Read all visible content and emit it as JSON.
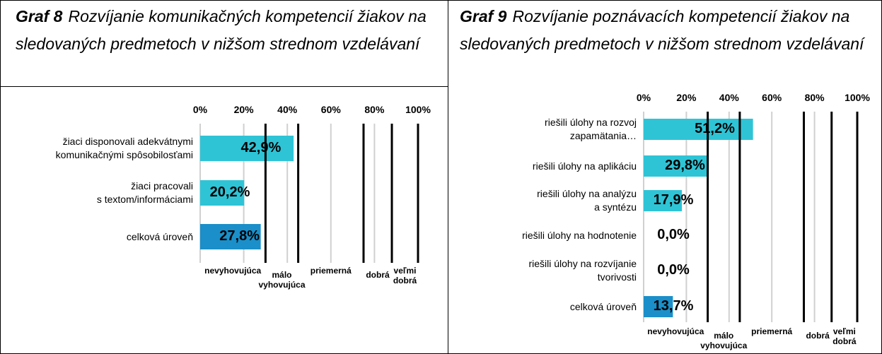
{
  "chart_data": [
    {
      "type": "bar",
      "label": "Graf 8",
      "title": "Rozvíjanie komunikačných kompetencií žiakov na sledovaných predmetoch v nižšom strednom vzdelávaní",
      "orientation": "horizontal",
      "categories": [
        "žiaci disponovali adekvátnymi\nkomunikačnými spôsobilosťami",
        "žiaci pracovali\ns textom/informáciami",
        "celková úroveň"
      ],
      "values": [
        42.9,
        20.2,
        27.8
      ],
      "value_labels": [
        "42,9%",
        "20,2%",
        "27,8%"
      ],
      "colors": [
        "#2ec4d6",
        "#2ec4d6",
        "#1a8fc9"
      ],
      "xlim": [
        0,
        100
      ],
      "xticks": [
        {
          "value": 0,
          "label": "0%"
        },
        {
          "value": 20,
          "label": "20%"
        },
        {
          "value": 40,
          "label": "40%"
        },
        {
          "value": 60,
          "label": "60%"
        },
        {
          "value": 80,
          "label": "80%"
        },
        {
          "value": 100,
          "label": "100%"
        }
      ],
      "grid": true,
      "thresholds": [
        30,
        45,
        75,
        88,
        100
      ],
      "band_labels": [
        "nevyhovujúca",
        "málo\nvyhovujúca",
        "priemerná",
        "dobrá",
        "veľmi\ndobrá"
      ]
    },
    {
      "type": "bar",
      "label": "Graf 9",
      "title": "Rozvíjanie poznávacích kompetencií žiakov na sledovaných predmetoch v nižšom strednom vzdelávaní",
      "orientation": "horizontal",
      "categories": [
        "riešili úlohy na rozvoj\nzapamätania…",
        "riešili úlohy na aplikáciu",
        "riešili úlohy na analýzu\na syntézu",
        "riešili úlohy na hodnotenie",
        "riešili úlohy na rozvíjanie\ntvorivosti",
        "celková úroveň"
      ],
      "values": [
        51.2,
        29.8,
        17.9,
        0.0,
        0.0,
        13.7
      ],
      "value_labels": [
        "51,2%",
        "29,8%",
        "17,9%",
        "0,0%",
        "0,0%",
        "13,7%"
      ],
      "colors": [
        "#2ec4d6",
        "#2ec4d6",
        "#2ec4d6",
        "#2ec4d6",
        "#2ec4d6",
        "#1a8fc9"
      ],
      "xlim": [
        0,
        100
      ],
      "xticks": [
        {
          "value": 0,
          "label": "0%"
        },
        {
          "value": 20,
          "label": "20%"
        },
        {
          "value": 40,
          "label": "40%"
        },
        {
          "value": 60,
          "label": "60%"
        },
        {
          "value": 80,
          "label": "80%"
        },
        {
          "value": 100,
          "label": "100%"
        }
      ],
      "grid": true,
      "thresholds": [
        30,
        45,
        75,
        88,
        100
      ],
      "band_labels": [
        "nevyhovujúca",
        "málo\nvyhovujúca",
        "priemerná",
        "dobrá",
        "veľmi\ndobrá"
      ]
    }
  ]
}
